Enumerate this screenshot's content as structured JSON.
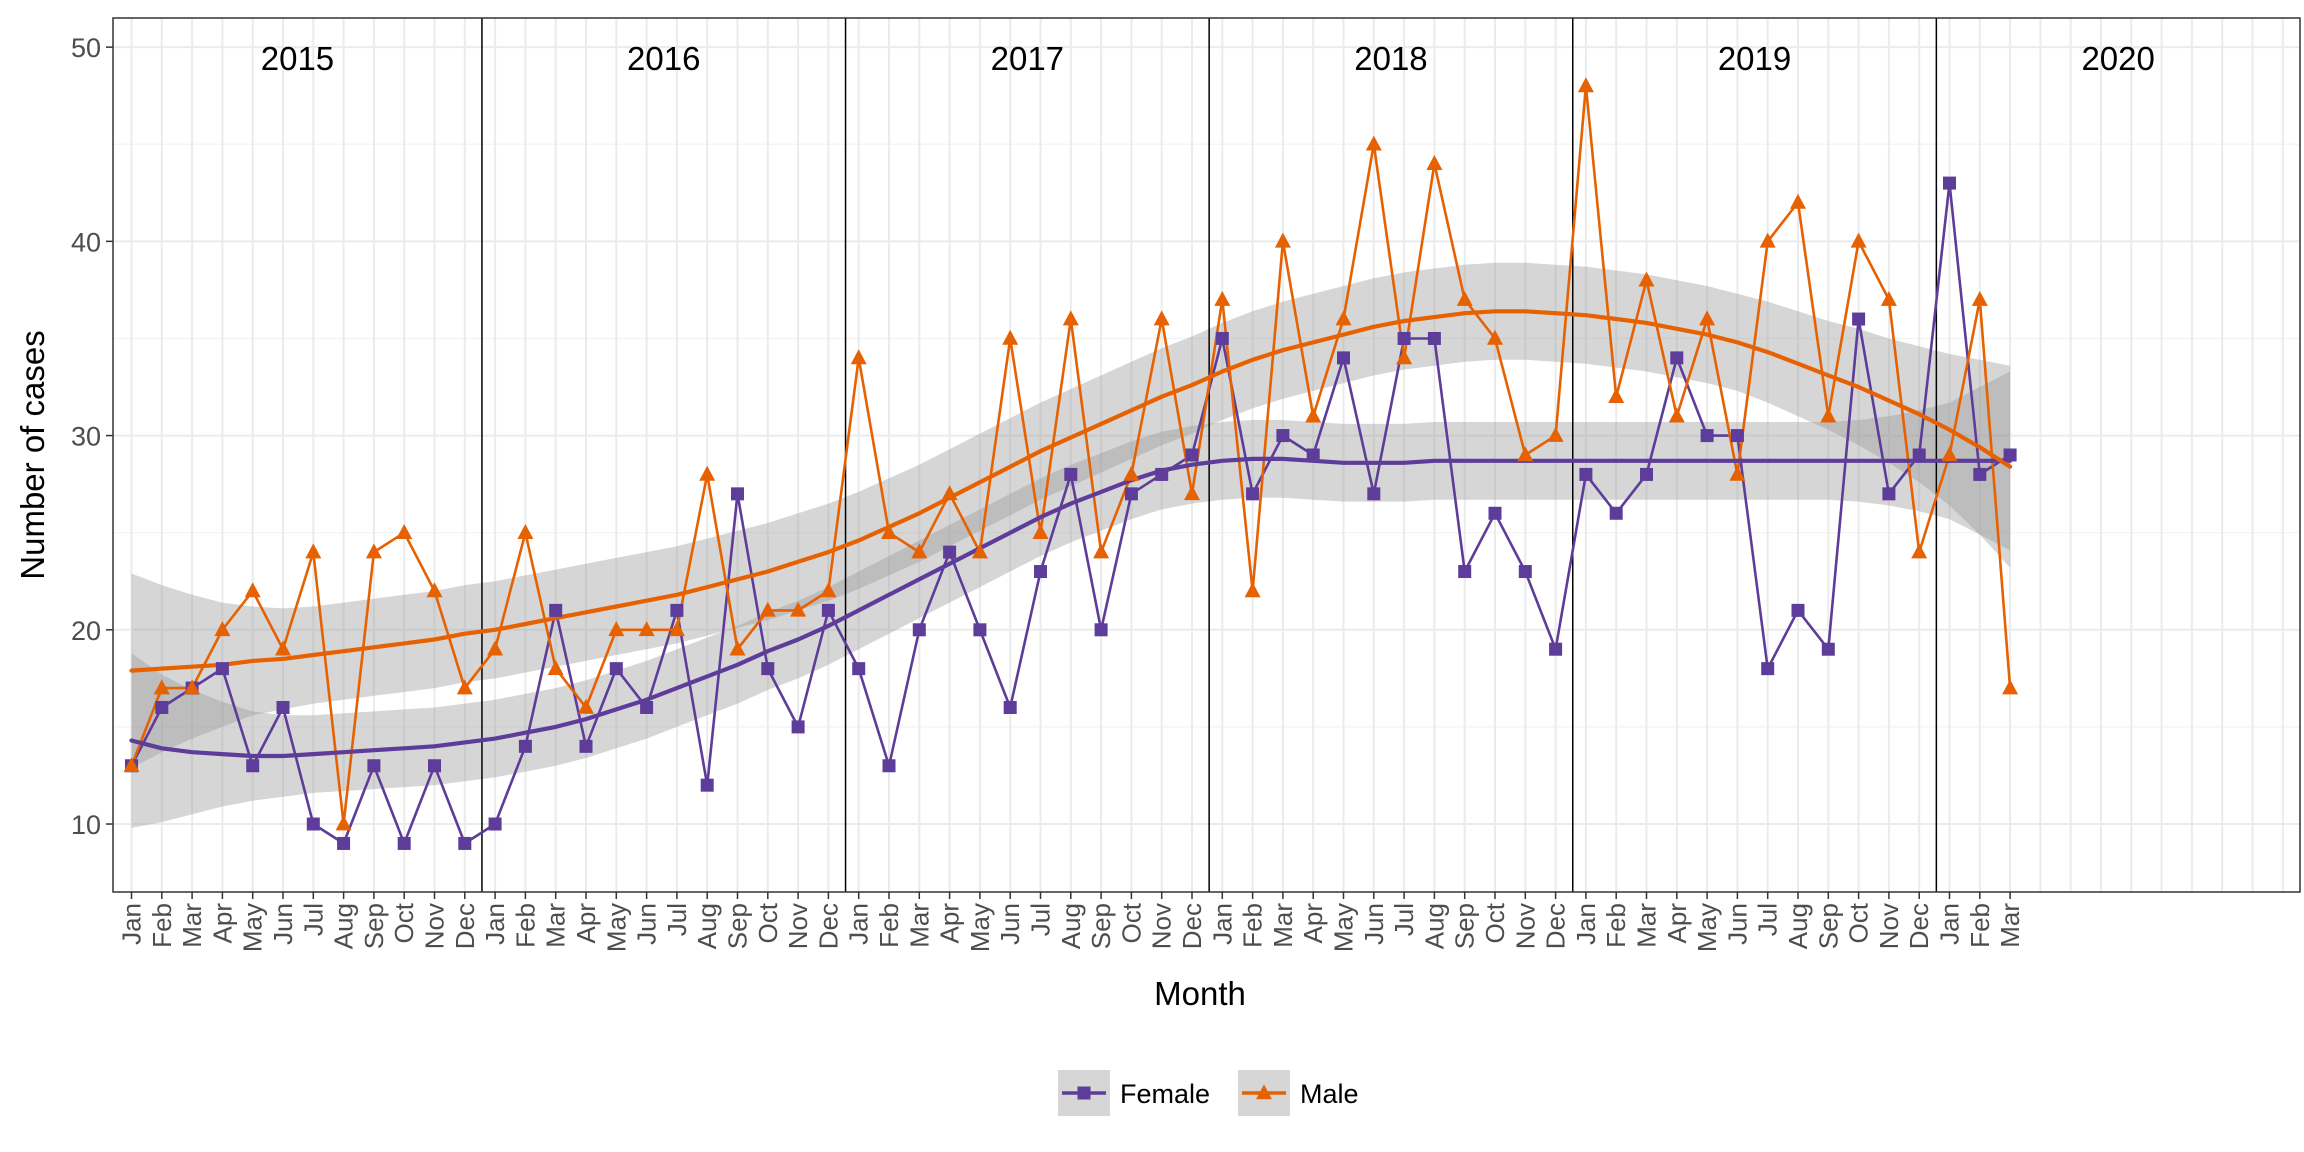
{
  "chart_data": {
    "type": "line",
    "xlabel": "Month",
    "ylabel": "Number of cases",
    "ylim": [
      6.5,
      51.5
    ],
    "y_ticks": [
      10,
      20,
      30,
      40,
      50
    ],
    "grid": true,
    "facets": [
      "2015",
      "2016",
      "2017",
      "2018",
      "2019",
      "2020"
    ],
    "month_labels": [
      "Jan",
      "Feb",
      "Mar",
      "Apr",
      "May",
      "Jun",
      "Jul",
      "Aug",
      "Sep",
      "Oct",
      "Nov",
      "Dec"
    ],
    "x": [
      "2015-01",
      "2015-02",
      "2015-03",
      "2015-04",
      "2015-05",
      "2015-06",
      "2015-07",
      "2015-08",
      "2015-09",
      "2015-10",
      "2015-11",
      "2015-12",
      "2016-01",
      "2016-02",
      "2016-03",
      "2016-04",
      "2016-05",
      "2016-06",
      "2016-07",
      "2016-08",
      "2016-09",
      "2016-10",
      "2016-11",
      "2016-12",
      "2017-01",
      "2017-02",
      "2017-03",
      "2017-04",
      "2017-05",
      "2017-06",
      "2017-07",
      "2017-08",
      "2017-09",
      "2017-10",
      "2017-11",
      "2017-12",
      "2018-01",
      "2018-02",
      "2018-03",
      "2018-04",
      "2018-05",
      "2018-06",
      "2018-07",
      "2018-08",
      "2018-09",
      "2018-10",
      "2018-11",
      "2018-12",
      "2019-01",
      "2019-02",
      "2019-03",
      "2019-04",
      "2019-05",
      "2019-06",
      "2019-07",
      "2019-08",
      "2019-09",
      "2019-10",
      "2019-11",
      "2019-12",
      "2020-01",
      "2020-02",
      "2020-03"
    ],
    "series": [
      {
        "name": "Female",
        "color": "#5e3c99",
        "marker": "square",
        "values": [
          13,
          16,
          17,
          18,
          13,
          16,
          10,
          9,
          13,
          9,
          13,
          9,
          10,
          14,
          21,
          14,
          18,
          16,
          21,
          12,
          27,
          18,
          15,
          21,
          18,
          13,
          20,
          24,
          20,
          16,
          23,
          28,
          20,
          27,
          28,
          29,
          35,
          27,
          30,
          29,
          34,
          27,
          35,
          35,
          23,
          26,
          23,
          19,
          28,
          26,
          28,
          34,
          30,
          30,
          18,
          21,
          19,
          36,
          27,
          29,
          43,
          28,
          29
        ],
        "trend": [
          14.3,
          13.9,
          13.7,
          13.6,
          13.5,
          13.5,
          13.6,
          13.7,
          13.8,
          13.9,
          14.0,
          14.2,
          14.4,
          14.7,
          15.0,
          15.4,
          15.9,
          16.4,
          17.0,
          17.6,
          18.2,
          18.9,
          19.5,
          20.2,
          21.0,
          21.8,
          22.6,
          23.4,
          24.2,
          25.0,
          25.8,
          26.5,
          27.1,
          27.7,
          28.2,
          28.5,
          28.7,
          28.8,
          28.8,
          28.7,
          28.6,
          28.6,
          28.6,
          28.7,
          28.7,
          28.7,
          28.7,
          28.7,
          28.7,
          28.7,
          28.7,
          28.7,
          28.7,
          28.7,
          28.7,
          28.7,
          28.7,
          28.7,
          28.7,
          28.7,
          28.7,
          28.7,
          28.7
        ],
        "ci_half_width": [
          4.5,
          3.8,
          3.2,
          2.7,
          2.3,
          2.1,
          2.0,
          2.0,
          2.0,
          2.0,
          2.0,
          2.0,
          2.0,
          2.0,
          2.0,
          2.0,
          2.0,
          2.0,
          2.0,
          2.0,
          2.0,
          2.0,
          2.0,
          2.0,
          2.0,
          2.0,
          2.0,
          2.0,
          2.0,
          2.0,
          2.0,
          2.0,
          2.0,
          2.0,
          2.0,
          2.0,
          2.0,
          2.0,
          2.0,
          2.0,
          2.0,
          2.0,
          2.0,
          2.0,
          2.0,
          2.0,
          2.0,
          2.0,
          2.0,
          2.0,
          2.0,
          2.0,
          2.0,
          2.0,
          2.0,
          2.0,
          2.0,
          2.1,
          2.3,
          2.6,
          3.0,
          3.8,
          4.6
        ]
      },
      {
        "name": "Male",
        "color": "#e66101",
        "marker": "triangle",
        "values": [
          13,
          17,
          17,
          20,
          22,
          19,
          24,
          10,
          24,
          25,
          22,
          17,
          19,
          25,
          18,
          16,
          20,
          20,
          20,
          28,
          19,
          21,
          21,
          22,
          34,
          25,
          24,
          27,
          24,
          35,
          25,
          36,
          24,
          28,
          36,
          27,
          37,
          22,
          40,
          31,
          36,
          45,
          34,
          44,
          37,
          35,
          29,
          30,
          48,
          32,
          38,
          31,
          36,
          28,
          40,
          42,
          31,
          40,
          37,
          24,
          29,
          37,
          17
        ],
        "trend": [
          17.9,
          18.0,
          18.1,
          18.2,
          18.4,
          18.5,
          18.7,
          18.9,
          19.1,
          19.3,
          19.5,
          19.8,
          20.0,
          20.3,
          20.6,
          20.9,
          21.2,
          21.5,
          21.8,
          22.2,
          22.6,
          23.0,
          23.5,
          24.0,
          24.6,
          25.3,
          26.0,
          26.8,
          27.6,
          28.4,
          29.2,
          29.9,
          30.6,
          31.3,
          32.0,
          32.6,
          33.3,
          33.9,
          34.4,
          34.8,
          35.2,
          35.6,
          35.9,
          36.1,
          36.3,
          36.4,
          36.4,
          36.3,
          36.2,
          36.0,
          35.8,
          35.5,
          35.2,
          34.8,
          34.3,
          33.7,
          33.1,
          32.5,
          31.8,
          31.1,
          30.3,
          29.4,
          28.4
        ],
        "ci_half_width": [
          5.0,
          4.3,
          3.7,
          3.2,
          2.8,
          2.6,
          2.5,
          2.5,
          2.5,
          2.5,
          2.5,
          2.5,
          2.5,
          2.5,
          2.5,
          2.5,
          2.5,
          2.5,
          2.5,
          2.5,
          2.5,
          2.5,
          2.5,
          2.5,
          2.5,
          2.5,
          2.5,
          2.5,
          2.5,
          2.5,
          2.5,
          2.5,
          2.5,
          2.5,
          2.5,
          2.5,
          2.5,
          2.5,
          2.5,
          2.5,
          2.5,
          2.5,
          2.5,
          2.5,
          2.5,
          2.5,
          2.5,
          2.5,
          2.5,
          2.5,
          2.5,
          2.5,
          2.5,
          2.5,
          2.6,
          2.7,
          2.8,
          3.0,
          3.2,
          3.5,
          3.9,
          4.5,
          5.2
        ]
      }
    ],
    "legend": {
      "position": "bottom",
      "items": [
        "Female",
        "Male"
      ]
    }
  }
}
